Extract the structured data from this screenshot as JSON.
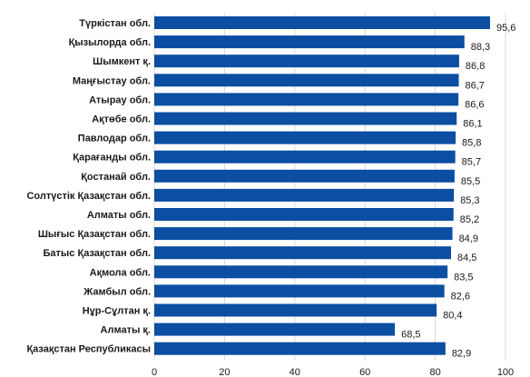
{
  "chart_data": {
    "type": "bar",
    "orientation": "horizontal",
    "title": "",
    "xlabel": "",
    "ylabel": "",
    "xlim": [
      0,
      100
    ],
    "xticks": [
      0,
      20,
      40,
      60,
      80,
      100
    ],
    "grid": true,
    "bar_color": "#0b4ea2",
    "categories": [
      "Түркістан обл.",
      "Қызылорда обл.",
      "Шымкент қ.",
      "Маңғыстау обл.",
      "Атырау обл.",
      "Ақтөбе обл.",
      "Павлодар обл.",
      "Қарағанды обл.",
      "Қостанай обл.",
      "Солтүстік Қазақстан обл.",
      "Алматы обл.",
      "Шығыс Қазақстан обл.",
      "Батыс Қазақстан обл.",
      "Ақмола обл.",
      "Жамбыл обл.",
      "Нұр-Сұлтан қ.",
      "Алматы қ.",
      "Қазақстан Республикасы"
    ],
    "values": [
      95.6,
      88.3,
      86.8,
      86.7,
      86.6,
      86.1,
      85.8,
      85.7,
      85.5,
      85.3,
      85.2,
      84.9,
      84.5,
      83.5,
      82.6,
      80.4,
      68.5,
      82.9
    ],
    "value_labels": [
      "95,6",
      "88,3",
      "86,8",
      "86,7",
      "86,6",
      "86,1",
      "85,8",
      "85,7",
      "85,5",
      "85,3",
      "85,2",
      "84,9",
      "84,5",
      "83,5",
      "82,6",
      "80,4",
      "68,5",
      "82,9"
    ]
  }
}
